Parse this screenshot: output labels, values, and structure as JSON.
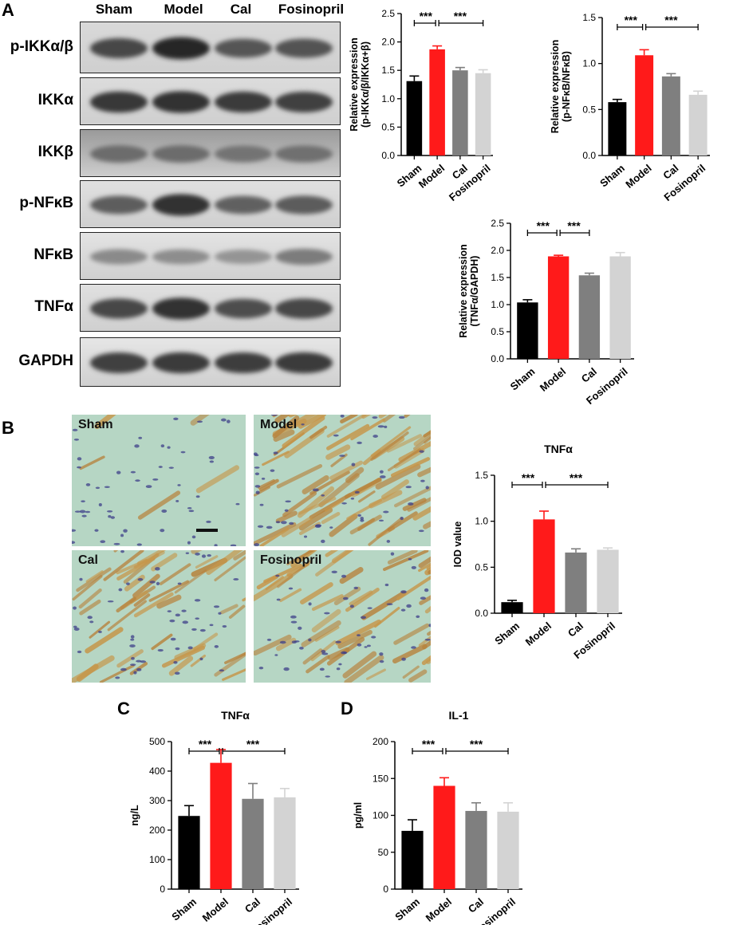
{
  "panels": {
    "a": "A",
    "b": "B",
    "c": "C",
    "d": "D"
  },
  "blot": {
    "lanes": [
      "Sham",
      "Model",
      "Cal",
      "Fosinopril"
    ],
    "rows": [
      {
        "label": "p-IKKα/β",
        "intensity": [
          0.8,
          1.0,
          0.7,
          0.72
        ],
        "bg": "#d9d9d9"
      },
      {
        "label": "IKKα",
        "intensity": [
          0.9,
          0.95,
          0.88,
          0.85
        ],
        "bg": "#dcdcdc"
      },
      {
        "label": "IKKβ",
        "intensity": [
          0.55,
          0.55,
          0.5,
          0.52
        ],
        "bg": "#9a9a9a"
      },
      {
        "label": "p-NFκB",
        "intensity": [
          0.65,
          0.95,
          0.62,
          0.66
        ],
        "bg": "#e0e0e0"
      },
      {
        "label": "NFκB",
        "intensity": [
          0.35,
          0.33,
          0.28,
          0.45
        ],
        "bg": "#e3e3e3"
      },
      {
        "label": "TNFα",
        "intensity": [
          0.8,
          0.95,
          0.75,
          0.8
        ],
        "bg": "#e0e0e0"
      },
      {
        "label": "GAPDH",
        "intensity": [
          0.85,
          0.88,
          0.86,
          0.88
        ],
        "bg": "#e6e6e6"
      }
    ]
  },
  "micro": {
    "labels": [
      "Sham",
      "Model",
      "Cal",
      "Fosinopril"
    ],
    "stain": [
      0.05,
      0.85,
      0.55,
      0.6
    ]
  },
  "colors": {
    "sham": "#000000",
    "model": "#ff1a1a",
    "cal": "#7f7f7f",
    "fosinopril": "#d3d3d3"
  },
  "chart_data": [
    {
      "id": "a1",
      "type": "bar",
      "categories": [
        "Sham",
        "Model",
        "Cal",
        "Fosinopril"
      ],
      "values": [
        1.31,
        1.87,
        1.5,
        1.45
      ],
      "errors": [
        0.09,
        0.06,
        0.05,
        0.06
      ],
      "title": "",
      "ylabel": [
        "Relative expression",
        "(p-IKKα/β/IKKα+β)"
      ],
      "ylim": [
        0,
        2.5
      ],
      "yticks": [
        "0.0",
        "0.5",
        "1.0",
        "1.5",
        "2.0",
        "2.5"
      ],
      "significance": [
        {
          "from": 0,
          "to": 1,
          "label": "***"
        },
        {
          "from": 1,
          "to": 3,
          "label": "***"
        }
      ]
    },
    {
      "id": "a2",
      "type": "bar",
      "categories": [
        "Sham",
        "Model",
        "Cal",
        "Fosinopril"
      ],
      "values": [
        0.58,
        1.09,
        0.86,
        0.66
      ],
      "errors": [
        0.03,
        0.06,
        0.03,
        0.04
      ],
      "title": "",
      "ylabel": [
        "Relative expression",
        "(p-NFκB/NFκB)"
      ],
      "ylim": [
        0,
        1.5
      ],
      "yticks": [
        "0.0",
        "0.5",
        "1.0",
        "1.5"
      ],
      "significance": [
        {
          "from": 0,
          "to": 1,
          "label": "***"
        },
        {
          "from": 1,
          "to": 3,
          "label": "***"
        }
      ]
    },
    {
      "id": "a3",
      "type": "bar",
      "categories": [
        "Sham",
        "Model",
        "Cal",
        "Fosinopril"
      ],
      "values": [
        1.04,
        1.89,
        1.54,
        1.89
      ],
      "errors": [
        0.05,
        0.02,
        0.04,
        0.07
      ],
      "title": "",
      "ylabel": [
        "Relative expression",
        "(TNFα/GAPDH)"
      ],
      "ylim": [
        0,
        2.5
      ],
      "yticks": [
        "0.0",
        "0.5",
        "1.0",
        "1.5",
        "2.0",
        "2.5"
      ],
      "significance": [
        {
          "from": 0,
          "to": 1,
          "label": "***"
        },
        {
          "from": 1,
          "to": 2,
          "label": "***"
        }
      ]
    },
    {
      "id": "b",
      "type": "bar",
      "categories": [
        "Sham",
        "Model",
        "Cal",
        "Fosinopril"
      ],
      "values": [
        0.12,
        1.02,
        0.66,
        0.69
      ],
      "errors": [
        0.02,
        0.09,
        0.04,
        0.02
      ],
      "title": "TNFα",
      "ylabel": [
        "IOD value"
      ],
      "ylim": [
        0,
        1.5
      ],
      "yticks": [
        "0.0",
        "0.5",
        "1.0",
        "1.5"
      ],
      "significance": [
        {
          "from": 0,
          "to": 1,
          "label": "***"
        },
        {
          "from": 1,
          "to": 3,
          "label": "***"
        }
      ]
    },
    {
      "id": "c",
      "type": "bar",
      "categories": [
        "Sham",
        "Model",
        "Cal",
        "Fosinopril"
      ],
      "values": [
        248,
        428,
        306,
        311
      ],
      "errors": [
        35,
        45,
        52,
        30
      ],
      "title": "TNFα",
      "ylabel": [
        "ng/L"
      ],
      "ylim": [
        0,
        500
      ],
      "yticks": [
        "0",
        "100",
        "200",
        "300",
        "400",
        "500"
      ],
      "significance": [
        {
          "from": 0,
          "to": 1,
          "label": "***"
        },
        {
          "from": 1,
          "to": 3,
          "label": "***"
        }
      ]
    },
    {
      "id": "d",
      "type": "bar",
      "categories": [
        "Sham",
        "Model",
        "Cal",
        "Fosinopril"
      ],
      "values": [
        79,
        140,
        106,
        105
      ],
      "errors": [
        15,
        11,
        11,
        12
      ],
      "title": "IL-1",
      "ylabel": [
        "pg/ml"
      ],
      "ylim": [
        0,
        200
      ],
      "yticks": [
        "0",
        "50",
        "100",
        "150",
        "200"
      ],
      "significance": [
        {
          "from": 0,
          "to": 1,
          "label": "***"
        },
        {
          "from": 1,
          "to": 3,
          "label": "***"
        }
      ]
    }
  ]
}
